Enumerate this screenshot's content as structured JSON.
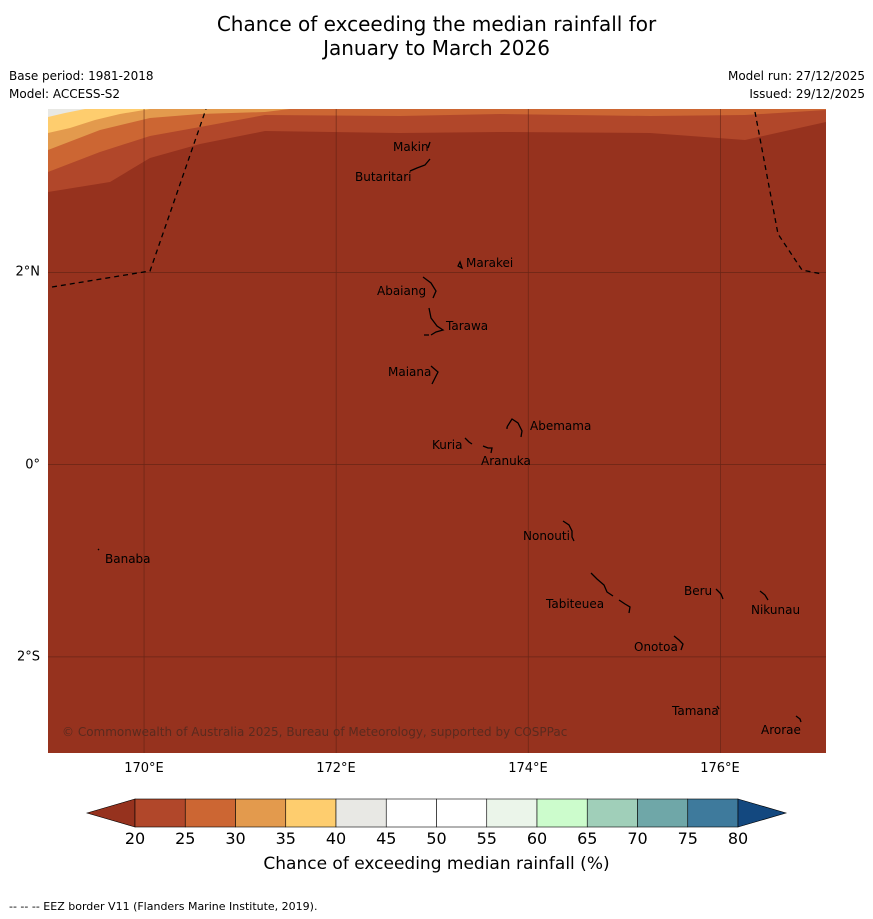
{
  "title_line1": "Chance of exceeding the median rainfall for",
  "title_line2": "January to March 2026",
  "base_period": "Base period: 1981-2018",
  "model": "Model: ACCESS-S2",
  "model_run": "Model run: 27/12/2025",
  "issued": "Issued: 29/12/2025",
  "map": {
    "lon_range": [
      169.0,
      177.1
    ],
    "lat_range": [
      -3.0,
      3.7
    ],
    "lon_labels": [
      {
        "lon": 170,
        "text": "170°E"
      },
      {
        "lon": 172,
        "text": "172°E"
      },
      {
        "lon": 174,
        "text": "174°E"
      },
      {
        "lon": 176,
        "text": "176°E"
      }
    ],
    "lat_labels": [
      {
        "lat": 2,
        "text": "2°N"
      },
      {
        "lat": 0,
        "text": "0°"
      },
      {
        "lat": -2,
        "text": "2°S"
      }
    ],
    "places": [
      {
        "name": "Makin",
        "lon": 172.98,
        "lat": 3.33
      },
      {
        "name": "Butaritari",
        "lon": 172.85,
        "lat": 3.05
      },
      {
        "name": "Marakei",
        "lon": 173.28,
        "lat": 2.02
      },
      {
        "name": "Abaiang",
        "lon": 172.95,
        "lat": 1.78
      },
      {
        "name": "Tarawa",
        "lon": 173.1,
        "lat": 1.4
      },
      {
        "name": "Maiana",
        "lon": 173.0,
        "lat": 0.95
      },
      {
        "name": "Abemama",
        "lon": 173.9,
        "lat": 0.4
      },
      {
        "name": "Kuria",
        "lon": 173.42,
        "lat": 0.22
      },
      {
        "name": "Aranuka",
        "lon": 173.62,
        "lat": 0.16
      },
      {
        "name": "Nonouti",
        "lon": 174.4,
        "lat": -0.65
      },
      {
        "name": "Banaba",
        "lon": 169.54,
        "lat": -0.86
      },
      {
        "name": "Beru",
        "lon": 176.0,
        "lat": -1.33
      },
      {
        "name": "Nikunau",
        "lon": 176.45,
        "lat": -1.35
      },
      {
        "name": "Tabiteuea",
        "lon": 174.8,
        "lat": -1.3
      },
      {
        "name": "Onotoa",
        "lon": 175.55,
        "lat": -1.8
      },
      {
        "name": "Tamana",
        "lon": 175.98,
        "lat": -2.49
      },
      {
        "name": "Arorae",
        "lon": 176.82,
        "lat": -2.64
      }
    ],
    "copyright": "© Commonwealth of Australia 2025, Bureau of Meteorology, supported by COSPPac"
  },
  "colorbar": {
    "label": "Chance of exceeding median rainfall (%)",
    "ticks": [
      "20",
      "25",
      "30",
      "35",
      "40",
      "45",
      "50",
      "55",
      "60",
      "65",
      "70",
      "75",
      "80"
    ],
    "colors": {
      "below20": "#96321e",
      "20-25": "#b1472a",
      "25-30": "#cc6633",
      "30-35": "#e39a4d",
      "35-40": "#fecd6e",
      "40-45": "#e8e8e4",
      "45-50": "#ffffff",
      "50-55": "#ffffff",
      "55-60": "#ebf5ea",
      "60-65": "#ccfccc",
      "65-70": "#a0cfb9",
      "70-75": "#6fa7a8",
      "75-80": "#3e7a9c",
      "above80": "#13487f"
    }
  },
  "footnote": "--  --  -- EEZ border V11 (Flanders Marine Institute, 2019)."
}
